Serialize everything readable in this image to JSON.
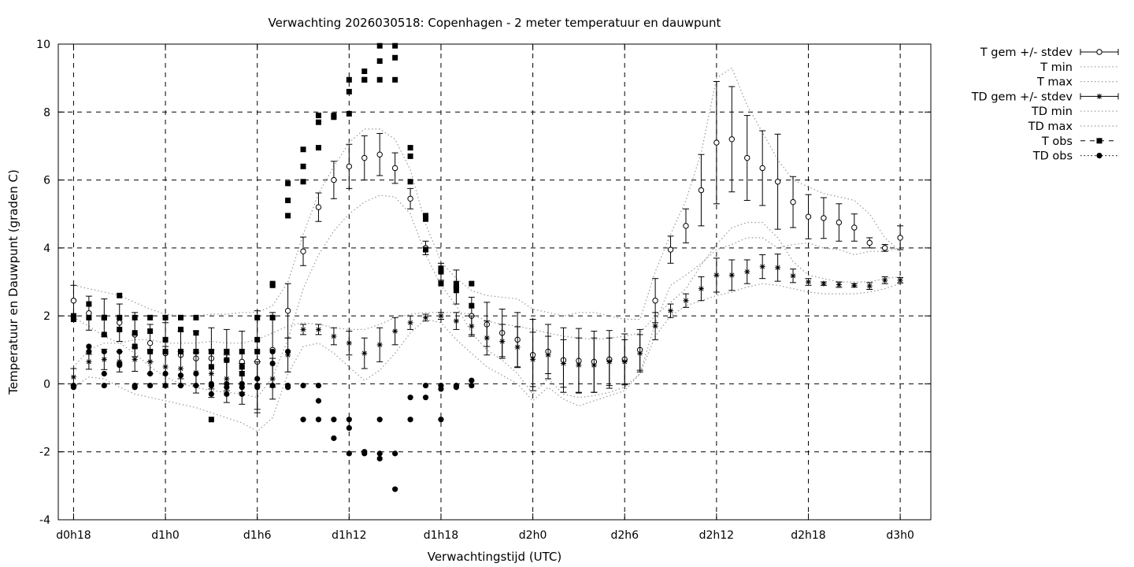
{
  "chart_data": {
    "type": "line",
    "title": "Verwachting 2026030518: Copenhagen - 2 meter temperatuur en dauwpunt",
    "xlabel": "Verwachtingstijd (UTC)",
    "ylabel": "Temperatuur en Dauwpunt (graden C)",
    "x_unit": "hours since d0h0",
    "xlim": [
      17,
      74
    ],
    "ylim": [
      -4,
      10
    ],
    "x_ticks": [
      {
        "x": 18,
        "label": "d0h18"
      },
      {
        "x": 24,
        "label": "d1h0"
      },
      {
        "x": 30,
        "label": "d1h6"
      },
      {
        "x": 36,
        "label": "d1h12"
      },
      {
        "x": 42,
        "label": "d1h18"
      },
      {
        "x": 48,
        "label": "d2h0"
      },
      {
        "x": 54,
        "label": "d2h6"
      },
      {
        "x": 60,
        "label": "d2h12"
      },
      {
        "x": 66,
        "label": "d2h18"
      },
      {
        "x": 72,
        "label": "d3h0"
      }
    ],
    "y_ticks": [
      -4,
      -2,
      0,
      2,
      4,
      6,
      8,
      10
    ],
    "grid": true,
    "legend_position": "outside-right",
    "legend": [
      {
        "key": "tgem",
        "label": "T gem +/- stdev"
      },
      {
        "key": "tmin",
        "label": "T min"
      },
      {
        "key": "tmax",
        "label": "T max"
      },
      {
        "key": "tdgem",
        "label": "TD gem +/- stdev"
      },
      {
        "key": "tdmin",
        "label": "TD min"
      },
      {
        "key": "tdmax",
        "label": "TD max"
      },
      {
        "key": "tobs",
        "label": "T obs"
      },
      {
        "key": "tdobs",
        "label": "TD obs"
      }
    ],
    "t_gem": {
      "x": [
        18,
        19,
        20,
        21,
        22,
        23,
        24,
        25,
        26,
        27,
        28,
        29,
        30,
        31,
        32,
        33,
        34,
        35,
        36,
        37,
        38,
        39,
        40,
        41,
        42,
        43,
        44,
        45,
        46,
        47,
        48,
        49,
        50,
        51,
        52,
        53,
        54,
        55,
        56,
        57,
        58,
        59,
        60,
        61,
        62,
        63,
        64,
        65,
        66,
        67,
        68,
        69,
        70,
        71,
        72
      ],
      "y": [
        2.45,
        2.08,
        1.95,
        1.8,
        1.45,
        1.2,
        0.9,
        0.85,
        0.75,
        0.75,
        0.7,
        0.65,
        0.65,
        1.0,
        2.15,
        3.9,
        5.2,
        6.0,
        6.4,
        6.65,
        6.75,
        6.35,
        5.45,
        4.0,
        3.3,
        2.85,
        2.0,
        1.75,
        1.5,
        1.3,
        0.85,
        0.95,
        0.7,
        0.68,
        0.65,
        0.72,
        0.72,
        1.0,
        2.45,
        3.95,
        4.65,
        5.7,
        7.1,
        7.2,
        6.65,
        6.35,
        5.95,
        5.35,
        4.92,
        4.88,
        4.75,
        4.6,
        4.15,
        4.0,
        4.3
      ],
      "err": [
        0.45,
        0.5,
        0.55,
        0.55,
        0.65,
        0.55,
        0.9,
        0.7,
        0.8,
        0.9,
        0.9,
        0.9,
        1.5,
        1.1,
        0.8,
        0.42,
        0.42,
        0.55,
        0.65,
        0.65,
        0.62,
        0.45,
        0.3,
        0.2,
        0.25,
        0.5,
        0.55,
        0.65,
        0.7,
        0.8,
        1.05,
        0.8,
        0.95,
        0.95,
        0.9,
        0.85,
        0.75,
        0.6,
        0.65,
        0.4,
        0.5,
        1.05,
        1.8,
        1.55,
        1.25,
        1.1,
        1.4,
        0.75,
        0.65,
        0.6,
        0.55,
        0.4,
        0.15,
        0.1,
        0.35
      ]
    },
    "td_gem": {
      "x": [
        18,
        19,
        20,
        21,
        22,
        23,
        24,
        25,
        26,
        27,
        28,
        29,
        30,
        31,
        32,
        33,
        34,
        35,
        36,
        37,
        38,
        39,
        40,
        41,
        42,
        43,
        44,
        45,
        46,
        47,
        48,
        49,
        50,
        51,
        52,
        53,
        54,
        55,
        56,
        57,
        58,
        59,
        60,
        61,
        62,
        63,
        64,
        65,
        66,
        67,
        68,
        69,
        70,
        71,
        72
      ],
      "y": [
        0.2,
        0.65,
        0.72,
        0.65,
        0.72,
        0.65,
        0.5,
        0.45,
        0.33,
        0.3,
        0.15,
        0.0,
        -0.05,
        0.15,
        0.85,
        1.6,
        1.6,
        1.4,
        1.2,
        0.9,
        1.15,
        1.55,
        1.8,
        1.95,
        2.0,
        1.85,
        1.7,
        1.35,
        1.25,
        1.08,
        0.72,
        0.85,
        0.6,
        0.55,
        0.55,
        0.65,
        0.65,
        0.9,
        1.7,
        2.15,
        2.45,
        2.8,
        3.2,
        3.2,
        3.3,
        3.45,
        3.42,
        3.18,
        3.0,
        2.95,
        2.92,
        2.9,
        2.88,
        3.05,
        3.05
      ],
      "err": [
        0.25,
        0.22,
        0.3,
        0.3,
        0.35,
        0.35,
        0.6,
        0.5,
        0.6,
        0.7,
        0.7,
        0.6,
        0.7,
        0.6,
        0.5,
        0.15,
        0.15,
        0.25,
        0.35,
        0.45,
        0.5,
        0.4,
        0.2,
        0.1,
        0.1,
        0.25,
        0.3,
        0.5,
        0.5,
        0.6,
        0.8,
        0.55,
        0.7,
        0.8,
        0.8,
        0.7,
        0.65,
        0.55,
        0.4,
        0.2,
        0.2,
        0.35,
        0.5,
        0.45,
        0.35,
        0.35,
        0.4,
        0.2,
        0.1,
        0.05,
        0.08,
        0.05,
        0.1,
        0.1,
        0.08
      ]
    },
    "t_min": {
      "x": [
        18,
        19,
        20,
        21,
        22,
        23,
        24,
        25,
        26,
        27,
        28,
        29,
        30,
        31,
        32,
        33,
        34,
        35,
        36,
        37,
        38,
        39,
        40,
        41,
        42,
        43,
        44,
        45,
        46,
        47,
        48,
        49,
        50,
        51,
        52,
        53,
        54,
        55,
        56,
        57,
        58,
        59,
        60,
        61,
        62,
        63,
        64,
        65,
        66,
        67,
        68,
        69,
        70,
        71,
        72
      ],
      "y": [
        1.95,
        1.7,
        1.4,
        1.2,
        0.9,
        0.5,
        0.2,
        0.0,
        -0.1,
        -0.2,
        -0.25,
        -0.3,
        -0.4,
        0.2,
        1.3,
        2.8,
        3.8,
        4.5,
        5.0,
        5.35,
        5.55,
        5.5,
        5.0,
        3.8,
        2.9,
        2.3,
        1.5,
        1.0,
        0.7,
        0.3,
        -0.3,
        0.15,
        -0.3,
        -0.4,
        -0.35,
        -0.25,
        -0.1,
        0.3,
        1.8,
        2.9,
        3.2,
        3.55,
        3.95,
        4.1,
        4.3,
        4.3,
        4.0,
        4.1,
        4.15,
        4.0,
        3.95,
        3.8,
        3.9,
        3.9,
        4.0
      ]
    },
    "t_max": {
      "x": [
        18,
        19,
        20,
        21,
        22,
        23,
        24,
        25,
        26,
        27,
        28,
        29,
        30,
        31,
        32,
        33,
        34,
        35,
        36,
        37,
        38,
        39,
        40,
        41,
        42,
        43,
        44,
        45,
        46,
        47,
        48,
        49,
        50,
        51,
        52,
        53,
        54,
        55,
        56,
        57,
        58,
        59,
        60,
        61,
        62,
        63,
        64,
        65,
        66,
        67,
        68,
        69,
        70,
        71,
        72
      ],
      "y": [
        2.9,
        2.8,
        2.7,
        2.6,
        2.4,
        2.2,
        2.05,
        2.0,
        2.0,
        2.05,
        2.05,
        2.1,
        2.1,
        2.3,
        3.0,
        4.4,
        5.6,
        6.4,
        7.1,
        7.5,
        7.5,
        7.2,
        6.3,
        4.7,
        3.6,
        3.1,
        2.75,
        2.6,
        2.55,
        2.5,
        2.2,
        2.1,
        2.0,
        2.1,
        2.1,
        2.0,
        1.9,
        1.9,
        3.3,
        4.4,
        5.4,
        6.8,
        9.0,
        9.3,
        8.2,
        7.4,
        6.6,
        6.0,
        5.8,
        5.6,
        5.5,
        5.4,
        5.0,
        4.3,
        3.9
      ]
    },
    "td_min": {
      "x": [
        18,
        19,
        20,
        21,
        22,
        23,
        24,
        25,
        26,
        27,
        28,
        29,
        30,
        31,
        32,
        33,
        34,
        35,
        36,
        37,
        38,
        39,
        40,
        41,
        42,
        43,
        44,
        45,
        46,
        47,
        48,
        49,
        50,
        51,
        52,
        53,
        54,
        55,
        56,
        57,
        58,
        59,
        60,
        61,
        62,
        63,
        64,
        65,
        66,
        67,
        68,
        69,
        70,
        71,
        72
      ],
      "y": [
        -0.1,
        0.2,
        0.15,
        -0.1,
        -0.3,
        -0.4,
        -0.5,
        -0.6,
        -0.7,
        -0.85,
        -1.0,
        -1.15,
        -1.4,
        -1.0,
        0.3,
        1.1,
        1.2,
        0.9,
        0.5,
        0.1,
        0.4,
        0.9,
        1.5,
        1.9,
        1.8,
        1.3,
        0.9,
        0.5,
        0.25,
        0.0,
        -0.5,
        -0.1,
        -0.45,
        -0.65,
        -0.5,
        -0.35,
        -0.2,
        0.3,
        1.4,
        2.0,
        2.3,
        2.45,
        2.6,
        2.7,
        2.85,
        2.95,
        2.9,
        2.8,
        2.7,
        2.65,
        2.65,
        2.65,
        2.7,
        2.8,
        2.95
      ]
    },
    "td_max": {
      "x": [
        18,
        19,
        20,
        21,
        22,
        23,
        24,
        25,
        26,
        27,
        28,
        29,
        30,
        31,
        32,
        33,
        34,
        35,
        36,
        37,
        38,
        39,
        40,
        41,
        42,
        43,
        44,
        45,
        46,
        47,
        48,
        49,
        50,
        51,
        52,
        53,
        54,
        55,
        56,
        57,
        58,
        59,
        60,
        61,
        62,
        63,
        64,
        65,
        66,
        67,
        68,
        69,
        70,
        71,
        72
      ],
      "y": [
        0.5,
        1.0,
        1.2,
        1.2,
        1.3,
        1.3,
        1.2,
        1.2,
        1.2,
        1.25,
        1.2,
        1.2,
        1.3,
        1.5,
        1.7,
        1.8,
        1.75,
        1.65,
        1.6,
        1.6,
        1.75,
        1.95,
        2.05,
        2.1,
        2.1,
        2.1,
        2.05,
        1.85,
        1.75,
        1.7,
        1.6,
        1.5,
        1.4,
        1.35,
        1.3,
        1.35,
        1.4,
        1.5,
        2.0,
        2.4,
        2.8,
        3.5,
        4.1,
        4.6,
        4.75,
        4.75,
        4.3,
        3.6,
        3.2,
        3.1,
        3.0,
        3.0,
        3.0,
        3.1,
        3.15
      ]
    },
    "t_obs": {
      "x": [
        18,
        18,
        18,
        19,
        19,
        20,
        20,
        20,
        21,
        21,
        21,
        22,
        22,
        22,
        23,
        23,
        23,
        24,
        24,
        24,
        25,
        25,
        25,
        26,
        26,
        26,
        27,
        27,
        27,
        28,
        28,
        28,
        29,
        29,
        29,
        30,
        30,
        30,
        31,
        31,
        31,
        32,
        32,
        32,
        33,
        33,
        33,
        34,
        34,
        34,
        35,
        35,
        36,
        36,
        36,
        37,
        37,
        37,
        38,
        38,
        38,
        39,
        39,
        39,
        40,
        40,
        40,
        41,
        41,
        41,
        42,
        42,
        42,
        43,
        43,
        43,
        44,
        44
      ],
      "y": [
        1.9,
        1.95,
        2.0,
        2.35,
        1.95,
        1.95,
        1.45,
        1.95,
        2.6,
        1.95,
        1.6,
        1.95,
        1.5,
        1.1,
        1.95,
        1.55,
        0.95,
        1.95,
        1.3,
        0.95,
        1.95,
        1.6,
        0.95,
        1.95,
        1.5,
        0.95,
        0.95,
        0.5,
        -1.05,
        0.95,
        0.7,
        0.95,
        0.95,
        0.5,
        0.3,
        1.95,
        1.3,
        0.95,
        1.95,
        2.9,
        2.95,
        4.95,
        5.4,
        5.9,
        6.4,
        6.9,
        5.95,
        7.7,
        7.9,
        6.95,
        7.9,
        7.85,
        7.95,
        8.6,
        8.95,
        8.95,
        9.2,
        8.95,
        9.5,
        9.95,
        8.95,
        9.6,
        9.95,
        8.95,
        5.95,
        6.7,
        6.95,
        4.85,
        4.95,
        3.95,
        3.4,
        3.3,
        2.95,
        2.95,
        2.75,
        2.85,
        2.95,
        2.3
      ]
    },
    "td_obs": {
      "x": [
        18,
        18,
        19,
        19,
        20,
        20,
        20,
        21,
        21,
        21,
        22,
        22,
        23,
        23,
        23,
        24,
        24,
        24,
        25,
        25,
        25,
        26,
        26,
        26,
        27,
        27,
        27,
        28,
        28,
        28,
        29,
        29,
        29,
        30,
        30,
        30,
        31,
        31,
        31,
        32,
        32,
        32,
        33,
        33,
        34,
        34,
        34,
        35,
        35,
        36,
        36,
        36,
        37,
        37,
        38,
        38,
        38,
        39,
        39,
        40,
        40,
        41,
        41,
        42,
        42,
        42,
        43,
        43,
        44,
        44
      ],
      "y": [
        -0.05,
        -0.1,
        1.1,
        0.95,
        0.95,
        0.3,
        -0.05,
        0.95,
        0.6,
        0.55,
        -0.05,
        -0.1,
        0.95,
        0.3,
        -0.05,
        0.95,
        0.3,
        -0.05,
        0.95,
        0.25,
        -0.05,
        0.95,
        0.3,
        -0.05,
        0.0,
        -0.05,
        -0.3,
        0.0,
        -0.1,
        -0.3,
        0.0,
        -0.1,
        -0.3,
        0.15,
        -0.05,
        -0.1,
        0.95,
        0.6,
        -0.05,
        0.95,
        -0.05,
        -0.1,
        -0.05,
        -1.05,
        -0.05,
        -0.5,
        -1.05,
        -1.05,
        -1.6,
        -1.05,
        -1.3,
        -2.05,
        -2.0,
        -2.05,
        -1.05,
        -2.05,
        -2.2,
        -2.05,
        -3.1,
        -1.05,
        -0.4,
        -0.05,
        -0.4,
        -0.05,
        -0.15,
        -1.05,
        -0.1,
        -0.05,
        0.1,
        -0.05
      ]
    }
  }
}
